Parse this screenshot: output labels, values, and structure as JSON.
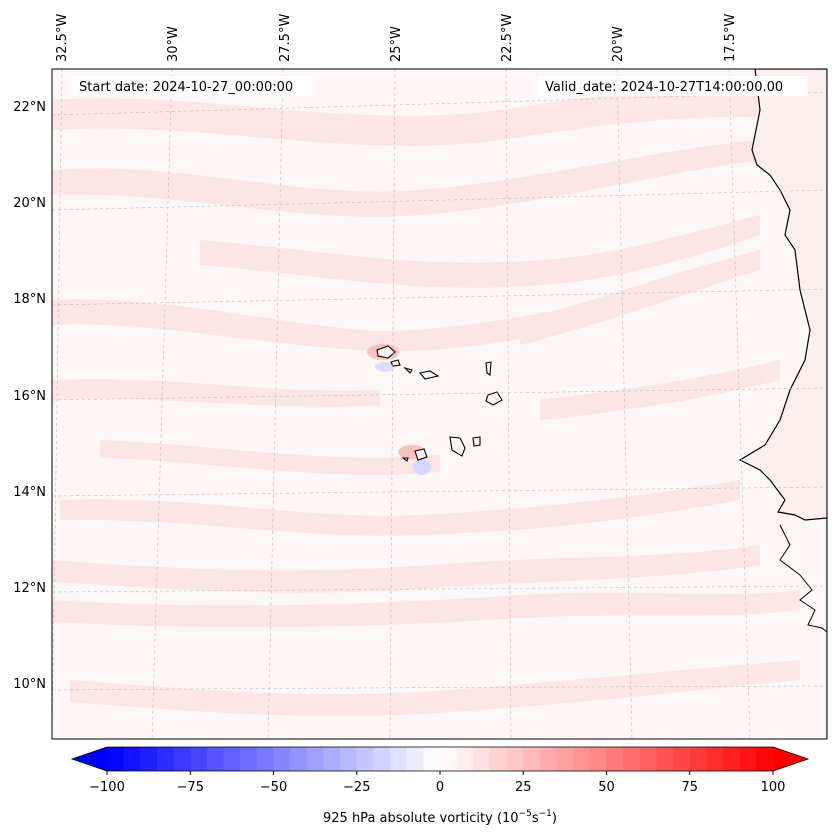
{
  "header": {
    "start_date": "Start date: 2024-10-27_00:00:00",
    "valid_date": "Valid_date: 2024-10-27T14:00:00.00"
  },
  "map": {
    "lon_labels": [
      "32.5°W",
      "30°W",
      "27.5°W",
      "25°W",
      "22.5°W",
      "20°W",
      "17.5°W"
    ],
    "lat_labels": [
      "22°N",
      "20°N",
      "18°N",
      "16°N",
      "14°N",
      "12°N",
      "10°N"
    ],
    "field": "925 hPa absolute vorticity",
    "field_colors": {
      "background": "#fdf6f6",
      "pink_band": "#fbe3e3",
      "land": "#fdeeee",
      "coast": "#000000"
    }
  },
  "colorbar": {
    "label_text": "925 hPa absolute vorticity (10",
    "label_exp1": "−5",
    "label_mid": "s",
    "label_exp2": "−1",
    "label_end": ")",
    "ticks": [
      "−100",
      "−75",
      "−50",
      "−25",
      "0",
      "25",
      "50",
      "75",
      "100"
    ],
    "range": [
      -100,
      100
    ],
    "colormap": "bwr",
    "low_color": "#0000ff",
    "mid_color": "#ffffff",
    "high_color": "#ff0000"
  }
}
